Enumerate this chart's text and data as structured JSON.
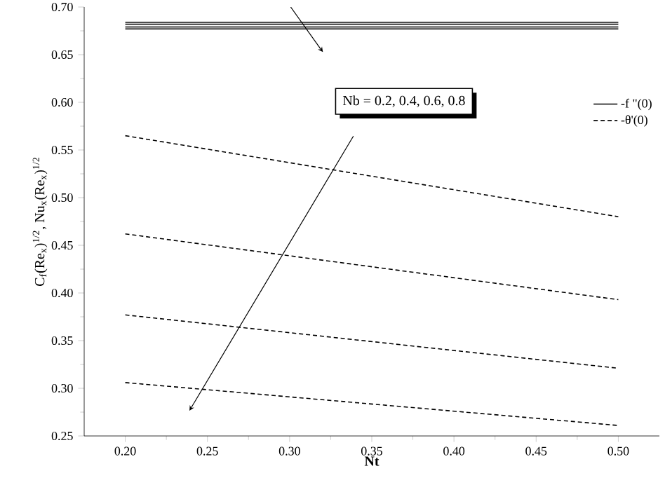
{
  "chart_data": {
    "type": "line",
    "xlabel": "Nt",
    "ylabel": "C$_{f}$(Re$_{x}$)$^{1/2}$,  Nu$_{x}$(Re$_{x}$)$^{1/2}$",
    "annotations": [
      "Nb = 0.2, 0.4, 0.6, 0.8"
    ],
    "x": [
      0.2,
      0.5
    ],
    "series": [
      {
        "name": "-f \"(0)",
        "color": "#000000",
        "line_style": "solid",
        "values": [
          0.684,
          0.684
        ]
      },
      {
        "color": "#000000",
        "line_style": "solid",
        "values": [
          0.682,
          0.682
        ]
      },
      {
        "color": "#000000",
        "line_style": "solid",
        "values": [
          0.679,
          0.679
        ]
      },
      {
        "color": "#000000",
        "line_style": "solid",
        "values": [
          0.677,
          0.677
        ]
      },
      {
        "name": "-θ'(0)",
        "color": "#000000",
        "line_style": "dashed",
        "values": [
          0.565,
          0.48
        ]
      },
      {
        "color": "#000000",
        "line_style": "dashed",
        "values": [
          0.462,
          0.393
        ]
      },
      {
        "color": "#000000",
        "line_style": "dashed",
        "values": [
          0.377,
          0.321
        ]
      },
      {
        "color": "#000000",
        "line_style": "dashed",
        "values": [
          0.306,
          0.261
        ]
      }
    ],
    "xlim": [
      0.175,
      0.525
    ],
    "ylim": [
      0.25,
      0.7
    ],
    "xticks": [
      {
        "value": 0.2,
        "label": "0.20"
      },
      {
        "value": 0.25,
        "label": "0.25"
      },
      {
        "value": 0.3,
        "label": "0.30"
      },
      {
        "value": 0.35,
        "label": "0.35"
      },
      {
        "value": 0.4,
        "label": "0.40"
      },
      {
        "value": 0.45,
        "label": "0.45"
      },
      {
        "value": 0.5,
        "label": "0.50"
      }
    ],
    "yticks": [
      {
        "value": 0.25,
        "label": "0.25"
      },
      {
        "value": 0.3,
        "label": "0.30"
      },
      {
        "value": 0.35,
        "label": "0.35"
      },
      {
        "value": 0.4,
        "label": "0.40"
      },
      {
        "value": 0.45,
        "label": "0.45"
      },
      {
        "value": 0.5,
        "label": "0.50"
      },
      {
        "value": 0.55,
        "label": "0.55"
      },
      {
        "value": 0.6,
        "label": "0.60"
      },
      {
        "value": 0.65,
        "label": "0.65"
      },
      {
        "value": 0.7,
        "label": "0.70"
      }
    ],
    "legend": "right",
    "marker": "none",
    "grid": false
  }
}
